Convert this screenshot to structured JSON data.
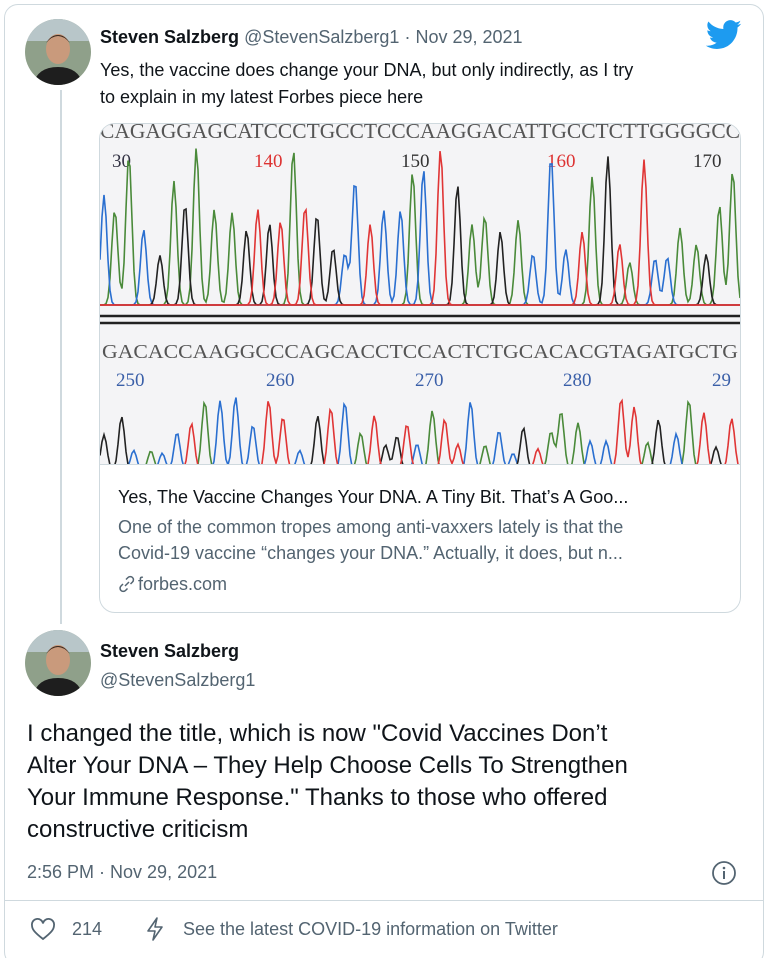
{
  "tweet": {
    "author": {
      "name": "Steven Salzberg",
      "handle": "@StevenSalzberg1",
      "separator": "·",
      "date": "Nov 29, 2021"
    },
    "text_lines": [
      "Yes, the vaccine does change your DNA, but only indirectly, as I try",
      "to explain in my latest Forbes piece here"
    ],
    "link_card": {
      "image": {
        "top_sequence": "CAGAGGAGCATCCCTGCCTCCCAAGGACATTGCCTCTTGGGGCC",
        "top_positions": [
          "30",
          "140",
          "150",
          "160",
          "170"
        ],
        "bottom_sequence": "GACACCAAGGCCCAGCACCTCCACTCTGCACACGTAGATGCTG",
        "bottom_positions": [
          "250",
          "260",
          "270",
          "280",
          "29"
        ]
      },
      "title": "Yes, The Vaccine Changes Your DNA. A Tiny Bit. That’s A Goo...",
      "description_lines": [
        "One of the common tropes among anti-vaxxers lately is that the",
        "Covid-19 vaccine “changes your DNA.” Actually, it does, but n..."
      ],
      "domain": "forbes.com"
    }
  },
  "reply": {
    "author": {
      "name": "Steven Salzberg",
      "handle": "@StevenSalzberg1"
    },
    "text_lines": [
      "I changed the title, which is now \"Covid Vaccines Don’t",
      "Alter Your DNA – They Help Choose Cells To Strengthen",
      "Your Immune Response.\" Thanks to those who offered",
      "constructive criticism"
    ],
    "timestamp": "2:56 PM · Nov 29, 2021",
    "likes": 214,
    "info_notice": "See the latest COVID-19 information on Twitter"
  }
}
